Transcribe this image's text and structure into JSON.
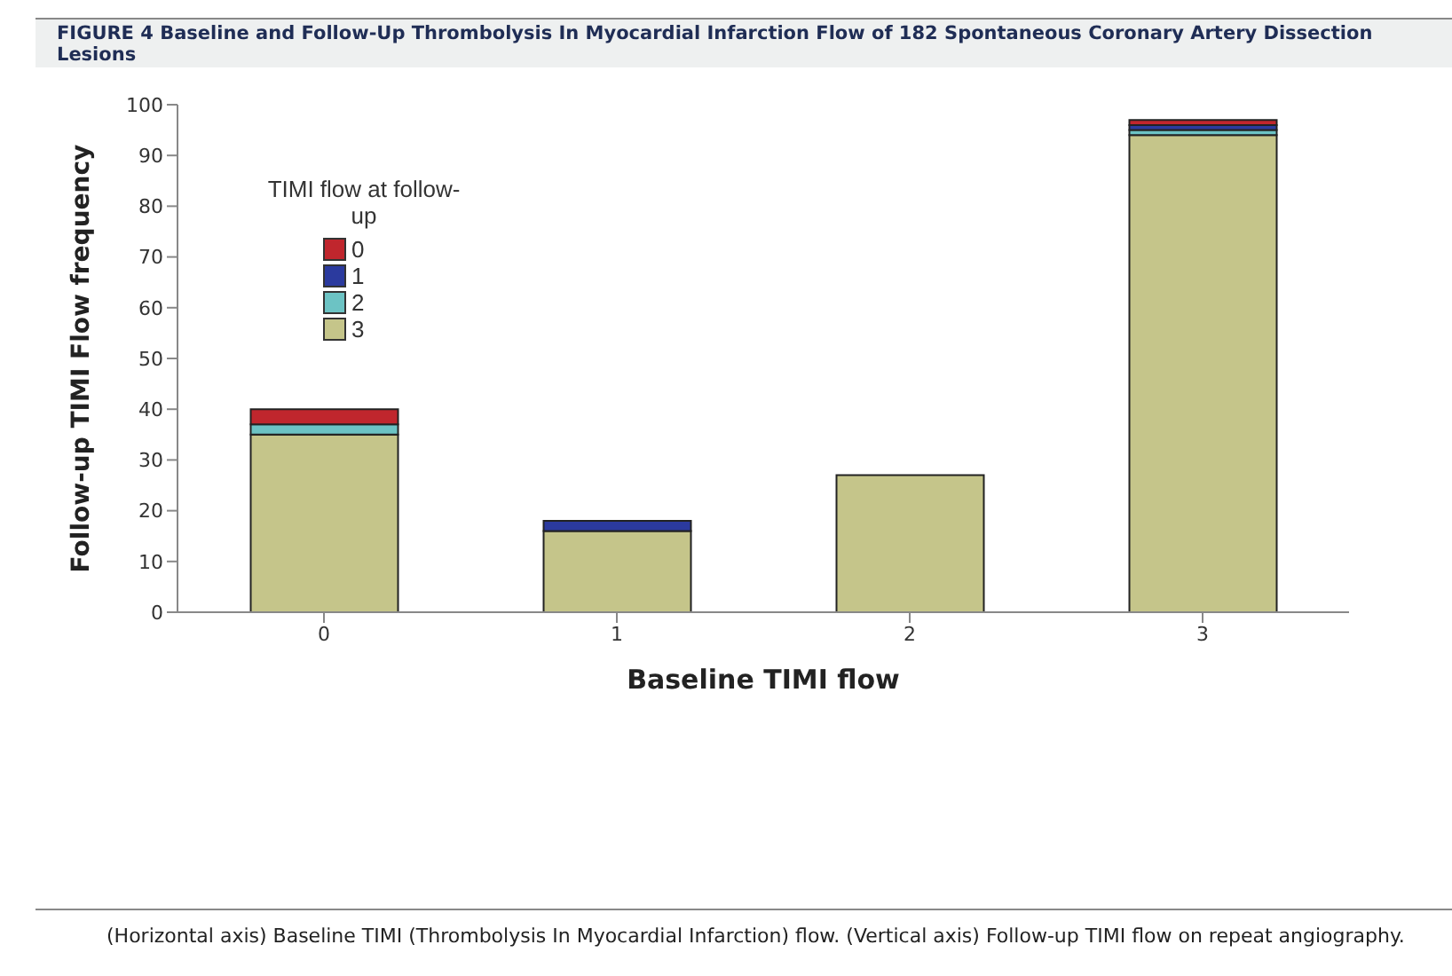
{
  "chart_data": {
    "type": "bar",
    "title": "FIGURE 4 Baseline and Follow-Up Thrombolysis In Myocardial Infarction Flow of 182 Spontaneous Coronary Artery Dissection Lesions",
    "xlabel": "Baseline TIMI flow",
    "ylabel": "Follow-up TIMI Flow frequency",
    "legend_title": "TIMI flow at follow-up",
    "annotations": [
      "(Horizontal axis) Baseline TIMI (Thrombolysis In Myocardial Infarction) flow. (Vertical axis) Follow-up TIMI flow on repeat angiography."
    ],
    "categories": [
      "0",
      "1",
      "2",
      "3"
    ],
    "stacked": true,
    "series": [
      {
        "name": "3",
        "color": "#c5c58a",
        "values": [
          35,
          16,
          27,
          94
        ]
      },
      {
        "name": "2",
        "color": "#6cc3c4",
        "values": [
          2,
          0,
          0,
          1
        ]
      },
      {
        "name": "1",
        "color": "#2b3a9e",
        "values": [
          0,
          2,
          0,
          1
        ]
      },
      {
        "name": "0",
        "color": "#c0262d",
        "values": [
          3,
          0,
          0,
          1
        ]
      }
    ],
    "ylim": [
      0,
      100
    ],
    "yticks": [
      0,
      10,
      20,
      30,
      40,
      50,
      60,
      70,
      80,
      90,
      100
    ],
    "grid": false,
    "legend": "top left"
  }
}
